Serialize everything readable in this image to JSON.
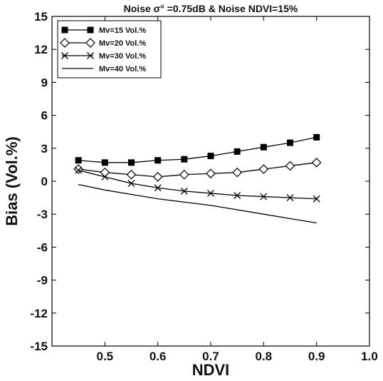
{
  "chart_data": {
    "type": "line",
    "title": "Noise σ° =0.75dB & Noise NDVI=15%",
    "xlabel": "NDVI",
    "ylabel": "Bias (Vol.%)",
    "xlim": [
      0.4,
      1.0
    ],
    "ylim": [
      -15,
      15
    ],
    "xticks": [
      0.5,
      0.6,
      0.7,
      0.8,
      0.9,
      1.0
    ],
    "xtick_labels": [
      "0.5",
      "0.6",
      "0.7",
      "0.8",
      "0.9",
      "1.0"
    ],
    "yticks": [
      15,
      12,
      9,
      6,
      3,
      0,
      -3,
      -6,
      -9,
      -12,
      -15
    ],
    "ytick_labels": [
      "15",
      "12",
      "9",
      "6",
      "3",
      "0",
      "-3",
      "-6",
      "-9",
      "-12",
      "-15"
    ],
    "grid": false,
    "legend_position": "top-left",
    "x": [
      0.45,
      0.5,
      0.55,
      0.6,
      0.65,
      0.7,
      0.75,
      0.8,
      0.85,
      0.9
    ],
    "series": [
      {
        "name": "Mv=15 Vol.%",
        "marker": "filled-square",
        "values": [
          1.9,
          1.7,
          1.7,
          1.9,
          2.0,
          2.3,
          2.7,
          3.1,
          3.5,
          4.0
        ]
      },
      {
        "name": "Mv=20 Vol.%",
        "marker": "open-diamond",
        "values": [
          1.1,
          0.8,
          0.6,
          0.4,
          0.6,
          0.7,
          0.8,
          1.1,
          1.4,
          1.7
        ]
      },
      {
        "name": "Mv=30 Vol.%",
        "marker": "x-cross",
        "values": [
          1.0,
          0.4,
          -0.2,
          -0.6,
          -0.9,
          -1.1,
          -1.3,
          -1.4,
          -1.5,
          -1.6
        ]
      },
      {
        "name": "Mv=40 Vol.%",
        "marker": "none",
        "values": [
          -0.3,
          -0.8,
          -1.2,
          -1.6,
          -1.9,
          -2.2,
          -2.6,
          -3.0,
          -3.4,
          -3.8
        ]
      }
    ]
  }
}
